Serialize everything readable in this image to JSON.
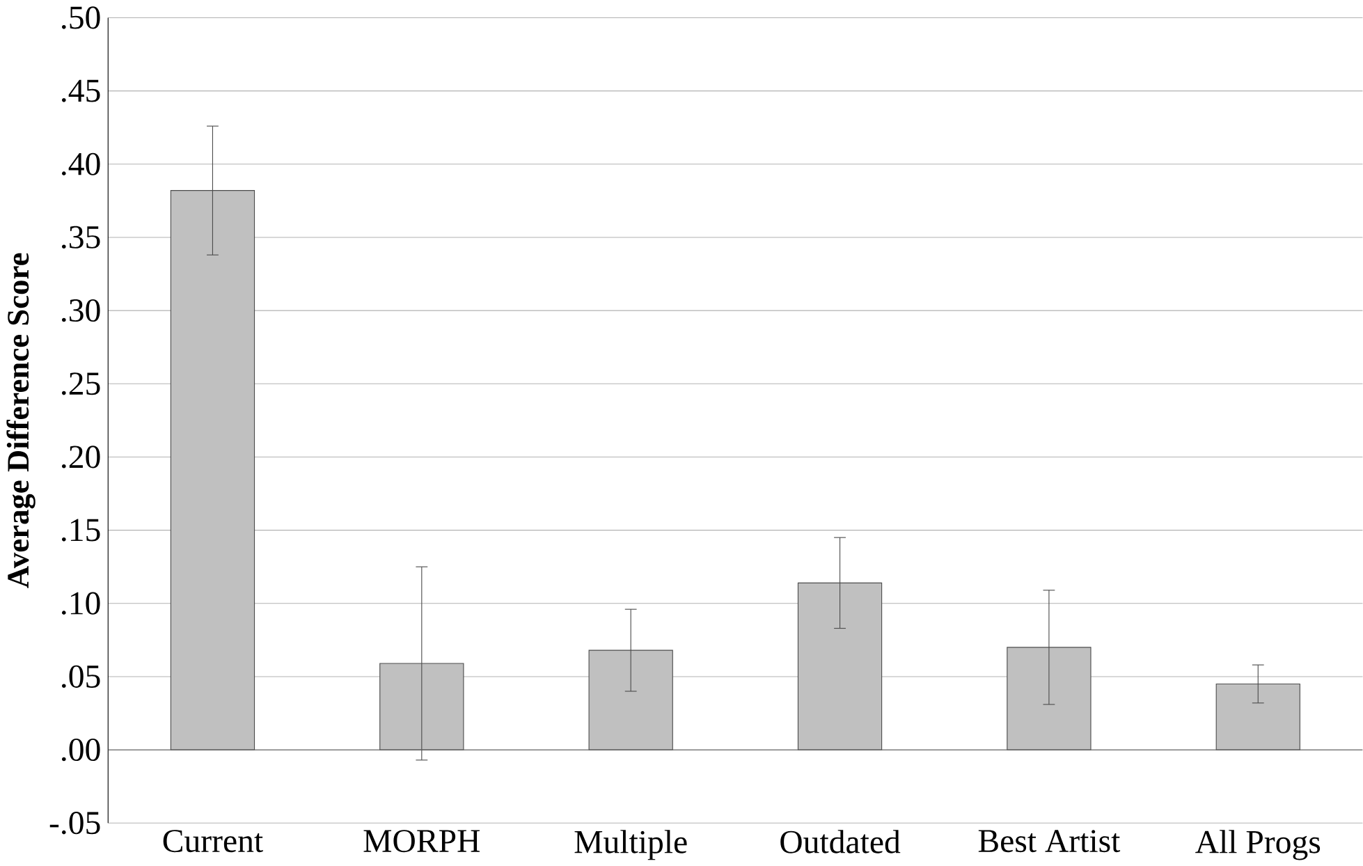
{
  "chart_data": {
    "type": "bar",
    "ylabel": "Average Difference Score",
    "categories": [
      "Current",
      "MORPH",
      "Multiple",
      "Outdated",
      "Best Artist",
      "All Progs"
    ],
    "values": [
      0.382,
      0.059,
      0.068,
      0.114,
      0.07,
      0.045
    ],
    "errors": [
      0.044,
      0.066,
      0.028,
      0.031,
      0.039,
      0.013
    ],
    "color": "#c0c0c0",
    "grid": "y",
    "ylim": [
      -0.05,
      0.5
    ],
    "yticks": [
      {
        "value": -0.05,
        "label": "-.05"
      },
      {
        "value": 0,
        "label": ".00"
      },
      {
        "value": 0.05,
        "label": ".05"
      },
      {
        "value": 0.1,
        "label": ".10"
      },
      {
        "value": 0.15,
        "label": ".15"
      },
      {
        "value": 0.2,
        "label": ".20"
      },
      {
        "value": 0.25,
        "label": ".25"
      },
      {
        "value": 0.3,
        "label": ".30"
      },
      {
        "value": 0.35,
        "label": ".35"
      },
      {
        "value": 0.4,
        "label": ".40"
      },
      {
        "value": 0.45,
        "label": ".45"
      },
      {
        "value": 0.5,
        "label": ".50"
      }
    ]
  }
}
